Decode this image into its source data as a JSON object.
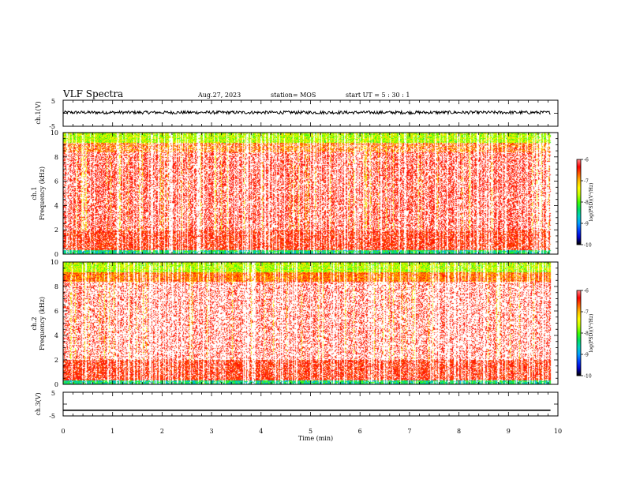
{
  "header": {
    "title": "VLF Spectra",
    "date": "Aug.27, 2023",
    "station": "station= MOS",
    "start_ut": "start  UT  =   5  : 30 : 1"
  },
  "colors": {
    "frame": "#000000",
    "background": "#ffffff",
    "colormap": [
      "#000000",
      "#0000cc",
      "#0040ff",
      "#00a0ff",
      "#00d0c0",
      "#00e060",
      "#40ff00",
      "#c0ff00",
      "#ffff00",
      "#ffc000",
      "#ff6000",
      "#ff0000",
      "#ff8080",
      "#ffffff"
    ]
  },
  "chart_data": [
    {
      "type": "line",
      "panel": "ch1-waveform",
      "ylabel": "ch.1(V)",
      "ytick_labels": [
        "5",
        "-5"
      ],
      "ylim": [
        -5,
        5
      ],
      "xlim": [
        0,
        10
      ],
      "signal": {
        "level": 0.3,
        "noise_amplitude": 0.6
      }
    },
    {
      "type": "heatmap",
      "panel": "ch1-spectrogram",
      "ylabel_line1": "ch.1",
      "ylabel_line2": "Frequency (kHz)",
      "ytick_labels": [
        "0",
        "2",
        "4",
        "6",
        "8",
        "10"
      ],
      "ylim": [
        0,
        10
      ],
      "xlim": [
        0,
        10
      ],
      "colorbar": {
        "label": "log(PSD)(V²/Hz)",
        "ticks": [
          "-6",
          "-7",
          "-8",
          "-9",
          "-10"
        ],
        "range": [
          -10,
          -6
        ]
      }
    },
    {
      "type": "heatmap",
      "panel": "ch2-spectrogram",
      "ylabel_line1": "ch.2",
      "ylabel_line2": "Frequency (kHz)",
      "ytick_labels": [
        "0",
        "2",
        "4",
        "6",
        "8",
        "10"
      ],
      "ylim": [
        0,
        10
      ],
      "xlim": [
        0,
        10
      ],
      "colorbar": {
        "label": "log(PSD)(V²/Hz)",
        "ticks": [
          "-6",
          "-7",
          "-8",
          "-9",
          "-10"
        ],
        "range": [
          -10,
          -6
        ]
      }
    },
    {
      "type": "line",
      "panel": "ch3-waveform",
      "ylabel": "ch.3(V)",
      "ytick_labels": [
        "5",
        "-5"
      ],
      "ylim": [
        -5,
        5
      ],
      "xlim": [
        0,
        10
      ],
      "signal": {
        "level": -2.6,
        "noise_amplitude": 0.0
      }
    }
  ],
  "x_axis": {
    "label": "Time  (min)",
    "tick_labels": [
      "0",
      "1",
      "2",
      "3",
      "4",
      "5",
      "6",
      "7",
      "8",
      "9",
      "10"
    ],
    "range": [
      0,
      10
    ]
  }
}
